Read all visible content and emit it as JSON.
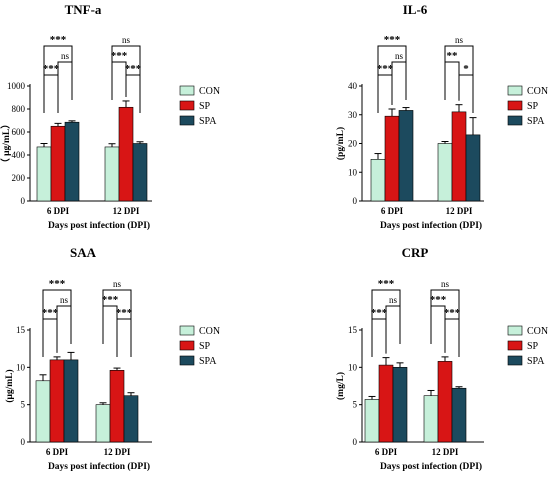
{
  "colors": {
    "CON": "#c6f0da",
    "SP": "#d81515",
    "SPA": "#1c4a5e",
    "stroke": "#000000"
  },
  "chart_data": [
    {
      "type": "bar",
      "title": "TNF-a",
      "ylabel": "（ μg/mL）",
      "xlabel": "Days post infection (DPI)",
      "categories": [
        "6 DPI",
        "12 DPI"
      ],
      "ylim": [
        0,
        1000
      ],
      "yticks": [
        0,
        200,
        400,
        600,
        800,
        1000
      ],
      "legend": {
        "entries": [
          "CON",
          "SP",
          "SPA"
        ],
        "placement": "right"
      },
      "series": [
        {
          "name": "CON",
          "values": [
            470,
            470
          ],
          "errors": [
            30,
            28
          ]
        },
        {
          "name": "SP",
          "values": [
            650,
            815
          ],
          "errors": [
            25,
            55
          ]
        },
        {
          "name": "SPA",
          "values": [
            685,
            500
          ],
          "errors": [
            12,
            15
          ]
        }
      ],
      "significance": [
        {
          "category": "6 DPI",
          "comparison": "CON vs SPA",
          "label": "***"
        },
        {
          "category": "6 DPI",
          "comparison": "SP vs SPA",
          "label": "ns"
        },
        {
          "category": "6 DPI",
          "comparison": "CON vs SP",
          "label": "***"
        },
        {
          "category": "12 DPI",
          "comparison": "CON vs SPA",
          "label": "ns"
        },
        {
          "category": "12 DPI",
          "comparison": "CON vs SP",
          "label": "***"
        },
        {
          "category": "12 DPI",
          "comparison": "SP vs SPA",
          "label": "***"
        }
      ]
    },
    {
      "type": "bar",
      "title": "IL-6",
      "ylabel": "(pg/mL)",
      "xlabel": "Days post infection (DPI)",
      "categories": [
        "6 DPI",
        "12 DPI"
      ],
      "ylim": [
        0,
        40
      ],
      "yticks": [
        0,
        10,
        20,
        30,
        40
      ],
      "legend": {
        "entries": [
          "CON",
          "SP",
          "SPA"
        ],
        "placement": "right"
      },
      "series": [
        {
          "name": "CON",
          "values": [
            14.5,
            20
          ],
          "errors": [
            2,
            0.7
          ]
        },
        {
          "name": "SP",
          "values": [
            29.5,
            31
          ],
          "errors": [
            2.5,
            2.5
          ]
        },
        {
          "name": "SPA",
          "values": [
            31.5,
            23
          ],
          "errors": [
            1,
            6
          ]
        }
      ],
      "significance": [
        {
          "category": "6 DPI",
          "comparison": "CON vs SPA",
          "label": "***"
        },
        {
          "category": "6 DPI",
          "comparison": "SP vs SPA",
          "label": "ns"
        },
        {
          "category": "6 DPI",
          "comparison": "CON vs SP",
          "label": "***"
        },
        {
          "category": "12 DPI",
          "comparison": "CON vs SPA",
          "label": "ns"
        },
        {
          "category": "12 DPI",
          "comparison": "CON vs SP",
          "label": "**"
        },
        {
          "category": "12 DPI",
          "comparison": "SP vs SPA",
          "label": "*"
        }
      ]
    },
    {
      "type": "bar",
      "title": "SAA",
      "ylabel": "(μg/mL)",
      "xlabel": "Days post infection (DPI)",
      "categories": [
        "6 DPI",
        "12 DPI"
      ],
      "ylim": [
        0,
        15
      ],
      "yticks": [
        0,
        5,
        10,
        15
      ],
      "legend": {
        "entries": [
          "CON",
          "SP",
          "SPA"
        ],
        "placement": "right"
      },
      "series": [
        {
          "name": "CON",
          "values": [
            8.2,
            5
          ],
          "errors": [
            0.8,
            0.25
          ]
        },
        {
          "name": "SP",
          "values": [
            11,
            9.6
          ],
          "errors": [
            0.4,
            0.3
          ]
        },
        {
          "name": "SPA",
          "values": [
            11,
            6.2
          ],
          "errors": [
            1,
            0.4
          ]
        }
      ],
      "significance": [
        {
          "category": "6 DPI",
          "comparison": "CON vs SPA",
          "label": "***"
        },
        {
          "category": "6 DPI",
          "comparison": "SP vs SPA",
          "label": "ns"
        },
        {
          "category": "6 DPI",
          "comparison": "CON vs SP",
          "label": "***"
        },
        {
          "category": "12 DPI",
          "comparison": "CON vs SPA",
          "label": "ns"
        },
        {
          "category": "12 DPI",
          "comparison": "CON vs SP",
          "label": "***"
        },
        {
          "category": "12 DPI",
          "comparison": "SP vs SPA",
          "label": "***"
        }
      ]
    },
    {
      "type": "bar",
      "title": "CRP",
      "ylabel": "(mg/L)",
      "xlabel": "Days post infection (DPI)",
      "categories": [
        "6 DPI",
        "12 DPI"
      ],
      "ylim": [
        0,
        15
      ],
      "yticks": [
        0,
        5,
        10,
        15
      ],
      "legend": {
        "entries": [
          "CON",
          "SP",
          "SPA"
        ],
        "placement": "right"
      },
      "series": [
        {
          "name": "CON",
          "values": [
            5.7,
            6.2
          ],
          "errors": [
            0.4,
            0.7
          ]
        },
        {
          "name": "SP",
          "values": [
            10.3,
            10.8
          ],
          "errors": [
            1,
            0.6
          ]
        },
        {
          "name": "SPA",
          "values": [
            10,
            7.2
          ],
          "errors": [
            0.6,
            0.2
          ]
        }
      ],
      "significance": [
        {
          "category": "6 DPI",
          "comparison": "CON vs SPA",
          "label": "***"
        },
        {
          "category": "6 DPI",
          "comparison": "SP vs SPA",
          "label": "ns"
        },
        {
          "category": "6 DPI",
          "comparison": "CON vs SP",
          "label": "***"
        },
        {
          "category": "12 DPI",
          "comparison": "CON vs SPA",
          "label": "ns"
        },
        {
          "category": "12 DPI",
          "comparison": "CON vs SP",
          "label": "***"
        },
        {
          "category": "12 DPI",
          "comparison": "SP vs SPA",
          "label": "***"
        }
      ]
    }
  ]
}
